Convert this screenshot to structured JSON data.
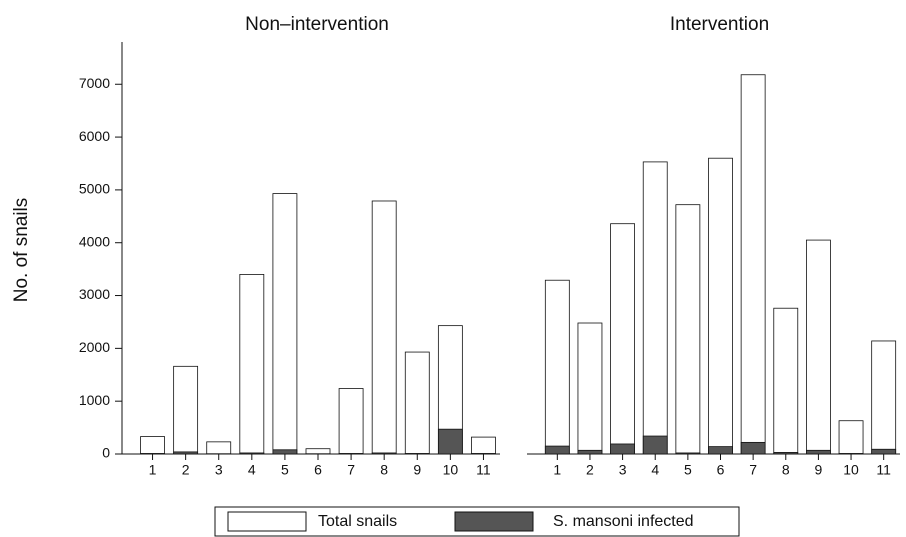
{
  "chart_data": {
    "type": "bar",
    "y_label": "No. of snails",
    "ylim": [
      0,
      7800
    ],
    "yticks": [
      0,
      1000,
      2000,
      3000,
      4000,
      5000,
      6000,
      7000
    ],
    "legend": [
      {
        "name": "Total snails",
        "color": "#ffffff"
      },
      {
        "name": "S. mansoni infected",
        "color": "#555555"
      }
    ],
    "panels": [
      {
        "title": "Non–intervention",
        "categories": [
          "1",
          "2",
          "3",
          "4",
          "5",
          "6",
          "7",
          "8",
          "9",
          "10",
          "11"
        ],
        "series": [
          {
            "values": [
              330,
              1660,
              230,
              3400,
              4930,
              100,
              1240,
              4790,
              1930,
              2430,
              320
            ]
          },
          {
            "values": [
              10,
              40,
              5,
              20,
              80,
              5,
              10,
              20,
              10,
              470,
              10
            ]
          }
        ]
      },
      {
        "title": "Intervention",
        "categories": [
          "1",
          "2",
          "3",
          "4",
          "5",
          "6",
          "7",
          "8",
          "9",
          "10",
          "11"
        ],
        "series": [
          {
            "values": [
              3290,
              2480,
              4360,
              5530,
              4720,
              5600,
              7180,
              2760,
              4050,
              630,
              2140
            ]
          },
          {
            "values": [
              150,
              70,
              190,
              340,
              20,
              140,
              220,
              30,
              70,
              10,
              90
            ]
          }
        ]
      }
    ]
  }
}
